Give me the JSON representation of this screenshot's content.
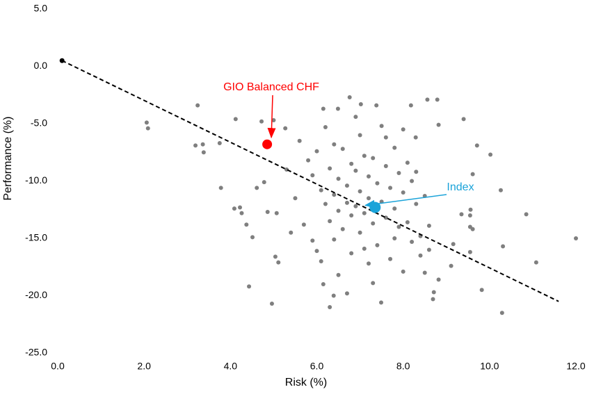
{
  "chart_data": {
    "type": "scatter",
    "xlabel": "Risk (%)",
    "ylabel": "Performance (%)",
    "xlim": [
      0,
      12
    ],
    "ylim": [
      -25,
      5
    ],
    "xticks": [
      {
        "value": 0,
        "label": "0.0"
      },
      {
        "value": 2,
        "label": "2.0"
      },
      {
        "value": 4,
        "label": "4.0"
      },
      {
        "value": 6,
        "label": "6.0"
      },
      {
        "value": 8,
        "label": "8.0"
      },
      {
        "value": 10,
        "label": "10.0"
      },
      {
        "value": 12,
        "label": "12.0"
      }
    ],
    "yticks": [
      {
        "value": 5,
        "label": "5.0"
      },
      {
        "value": 0,
        "label": "0.0"
      },
      {
        "value": -5,
        "label": "-5.0"
      },
      {
        "value": -10,
        "label": "-10.0"
      },
      {
        "value": -15,
        "label": "-15.0"
      },
      {
        "value": -20,
        "label": "-20.0"
      },
      {
        "value": -25,
        "label": "-25.0"
      }
    ],
    "grid": false,
    "points": {
      "color": "#7f7f7f",
      "x": [
        2.06,
        2.09,
        3.24,
        3.19,
        3.36,
        3.38,
        3.75,
        3.78,
        4.12,
        4.09,
        4.22,
        4.26,
        4.37,
        4.51,
        4.43,
        4.96,
        5.04,
        5.11,
        4.61,
        4.78,
        4.72,
        5.0,
        5.27,
        4.86,
        5.07,
        12.0,
        11.08,
        10.85,
        10.26,
        10.31,
        10.29,
        10.02,
        9.71,
        9.82,
        9.4,
        9.55,
        9.55,
        9.61,
        9.56,
        9.61,
        9.35,
        9.55,
        8.79,
        8.56,
        8.82,
        8.18,
        8.29,
        9.16,
        9.11,
        8.82,
        8.71,
        8.69,
        7.49,
        6.3,
        6.15,
        6.39,
        6.76,
        7.38,
        7.02,
        6.15,
        6.49,
        5.6,
        5.8,
        5.9,
        6.0,
        6.1,
        6.2,
        6.3,
        6.3,
        6.4,
        6.4,
        6.5,
        6.5,
        6.6,
        6.6,
        6.7,
        6.7,
        6.8,
        6.8,
        6.8,
        6.9,
        6.9,
        7.0,
        7.0,
        7.0,
        7.1,
        7.1,
        7.2,
        7.2,
        7.2,
        7.3,
        7.3,
        7.4,
        7.4,
        7.5,
        7.5,
        7.6,
        7.6,
        7.7,
        7.7,
        7.8,
        7.8,
        7.9,
        7.9,
        8.0,
        8.0,
        8.1,
        8.1,
        8.2,
        8.2,
        8.3,
        8.4,
        8.4,
        8.5,
        8.5,
        8.6,
        8.6,
        5.5,
        5.7,
        5.9,
        6.1,
        6.2,
        6.5,
        6.9,
        7.3,
        7.6,
        8.0,
        5.3,
        5.4,
        6.0,
        6.7,
        7.1,
        6.4,
        7.8,
        8.3
      ],
      "y": [
        -4.9,
        -5.4,
        -3.4,
        -6.9,
        -6.8,
        -7.5,
        -6.7,
        -10.6,
        -4.6,
        -12.4,
        -12.3,
        -12.8,
        -13.8,
        -14.9,
        -19.2,
        -20.7,
        -16.6,
        -17.1,
        -10.6,
        -10.1,
        -4.8,
        -4.7,
        -5.4,
        -12.7,
        -12.8,
        -15.0,
        -17.1,
        -12.9,
        -10.8,
        -15.7,
        -21.5,
        -7.7,
        -6.9,
        -19.5,
        -4.6,
        -13.0,
        -14.0,
        -14.2,
        -12.5,
        -9.4,
        -12.9,
        -16.2,
        -2.9,
        -2.9,
        -5.1,
        -3.4,
        -6.2,
        -15.5,
        -17.4,
        -18.6,
        -19.7,
        -20.3,
        -20.6,
        -21.0,
        -19.0,
        -20.0,
        -2.7,
        -3.4,
        -3.3,
        -3.7,
        -3.7,
        -6.5,
        -8.2,
        -9.5,
        -7.4,
        -10.8,
        -12.0,
        -8.9,
        -13.5,
        -11.2,
        -15.1,
        -9.8,
        -12.6,
        -7.2,
        -14.2,
        -10.4,
        -11.9,
        -8.5,
        -13.0,
        -16.3,
        -9.1,
        -12.2,
        -6.0,
        -10.9,
        -14.5,
        -7.8,
        -12.8,
        -9.6,
        -11.5,
        -17.2,
        -8.0,
        -13.7,
        -10.2,
        -15.6,
        -5.2,
        -11.8,
        -8.7,
        -13.2,
        -10.6,
        -16.8,
        -7.1,
        -12.4,
        -9.3,
        -14.0,
        -11.0,
        -17.9,
        -8.4,
        -13.6,
        -10.0,
        -15.3,
        -12.0,
        -14.8,
        -16.5,
        -11.3,
        -18.0,
        -13.9,
        -16.0,
        -11.5,
        -13.8,
        -15.2,
        -17.0,
        -5.3,
        -18.2,
        -4.4,
        -18.9,
        -6.2,
        -5.5,
        -9.0,
        -14.5,
        -16.1,
        -19.8,
        -15.9,
        -6.8,
        -15.0,
        -9.2
      ]
    },
    "trend_line": {
      "color": "#000000",
      "x": [
        0.1,
        11.6
      ],
      "y": [
        0.5,
        -20.5
      ]
    },
    "highlights": [
      {
        "label": "GIO Balanced CHF",
        "color": "#ff0000",
        "x": 4.85,
        "y": -6.8
      },
      {
        "label": "Index",
        "color": "#1aa3d9",
        "x": 7.35,
        "y": -12.3
      }
    ]
  }
}
